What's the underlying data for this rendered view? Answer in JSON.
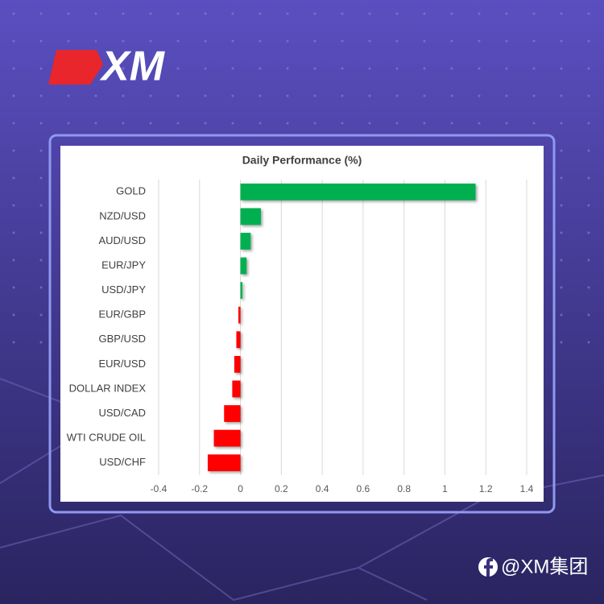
{
  "logo": {
    "text": "XM"
  },
  "footer": {
    "handle": "@XM集团"
  },
  "chart_data": {
    "type": "hbar",
    "title": "Daily Performance (%)",
    "categories": [
      "GOLD",
      "NZD/USD",
      "AUD/USD",
      "EUR/JPY",
      "USD/JPY",
      "EUR/GBP",
      "GBP/USD",
      "EUR/USD",
      "DOLLAR INDEX",
      "USD/CAD",
      "WTI CRUDE OIL",
      "USD/CHF"
    ],
    "values": [
      1.15,
      0.1,
      0.05,
      0.03,
      0.01,
      -0.01,
      -0.02,
      -0.03,
      -0.04,
      -0.08,
      -0.13,
      -0.16
    ],
    "positive_color": "#00b050",
    "negative_color": "#ff0000",
    "xlim": [
      -0.4,
      1.4
    ],
    "xticks": [
      -0.4,
      -0.2,
      0,
      0.2,
      0.4,
      0.6,
      0.8,
      1,
      1.2,
      1.4
    ],
    "grid": true
  }
}
